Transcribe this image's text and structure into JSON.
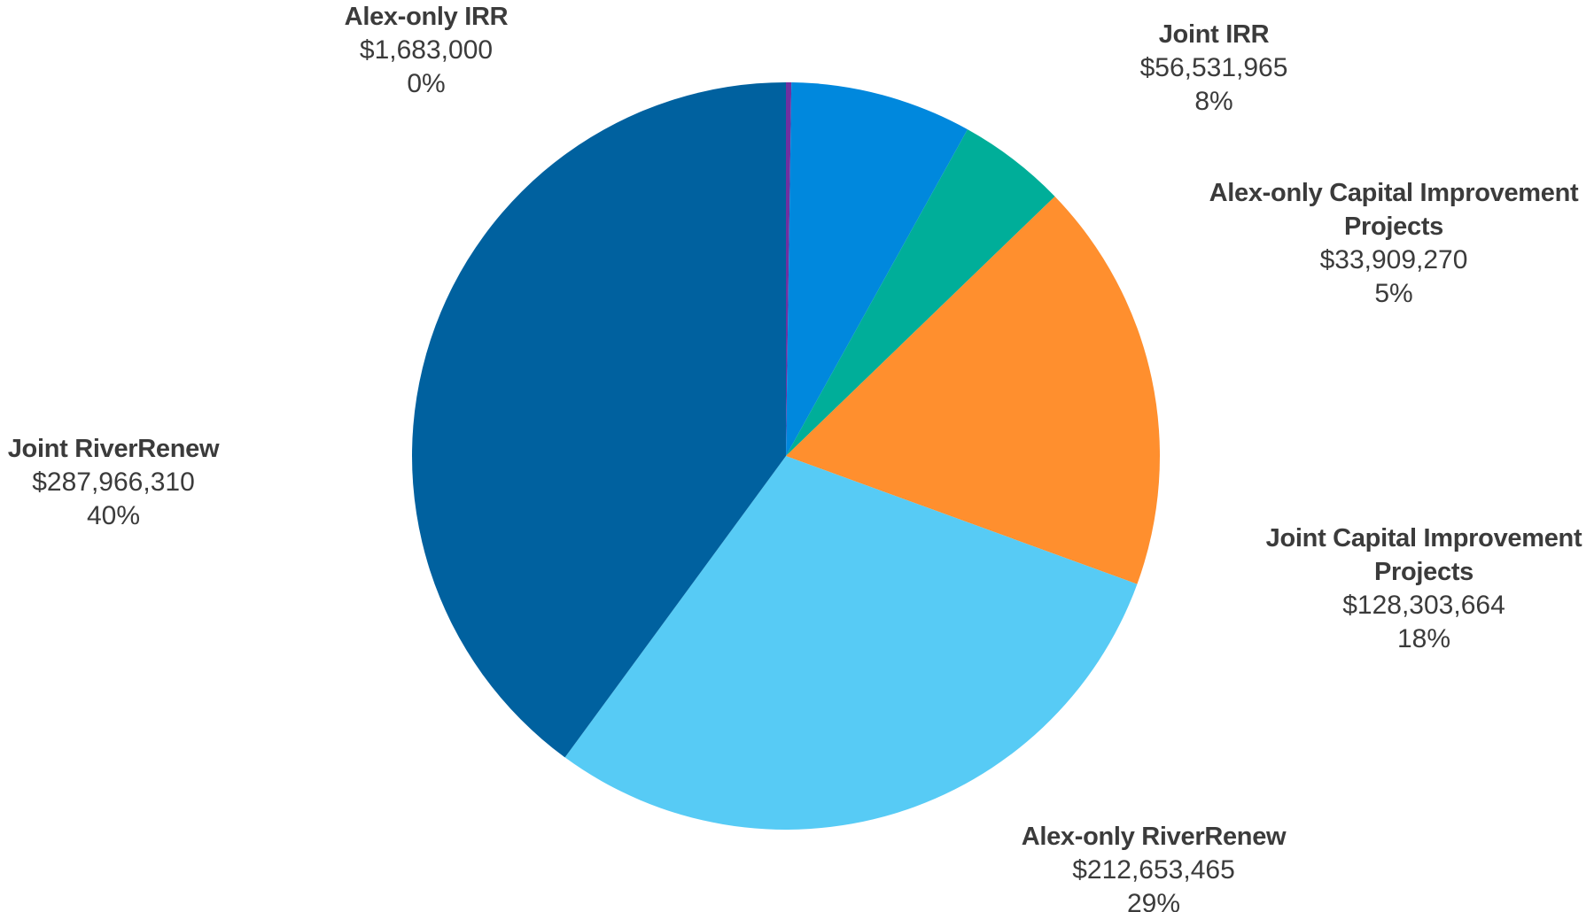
{
  "chart_data": {
    "type": "pie",
    "title": "",
    "start_angle_deg": 0,
    "direction": "clockwise",
    "legend": "none",
    "slices": [
      {
        "label_lines": [
          "Alex-only IRR"
        ],
        "value": 1683000,
        "value_label": "$1,683,000",
        "percent_label": "0%",
        "color": "#7030A0"
      },
      {
        "label_lines": [
          "Joint IRR"
        ],
        "value": 56531965,
        "value_label": "$56,531,965",
        "percent_label": "8%",
        "color": "#0088DD"
      },
      {
        "label_lines": [
          "Alex-only Capital Improvement",
          "Projects"
        ],
        "value": 33909270,
        "value_label": "$33,909,270",
        "percent_label": "5%",
        "color": "#00AE99"
      },
      {
        "label_lines": [
          "Joint Capital Improvement",
          "Projects"
        ],
        "value": 128303664,
        "value_label": "$128,303,664",
        "percent_label": "18%",
        "color": "#FF8F2E"
      },
      {
        "label_lines": [
          "Alex-only RiverRenew"
        ],
        "value": 212653465,
        "value_label": "$212,653,465",
        "percent_label": "29%",
        "color": "#57CBF5"
      },
      {
        "label_lines": [
          "Joint RiverRenew"
        ],
        "value": 287966310,
        "value_label": "$287,966,310",
        "percent_label": "40%",
        "color": "#00619F"
      }
    ]
  }
}
